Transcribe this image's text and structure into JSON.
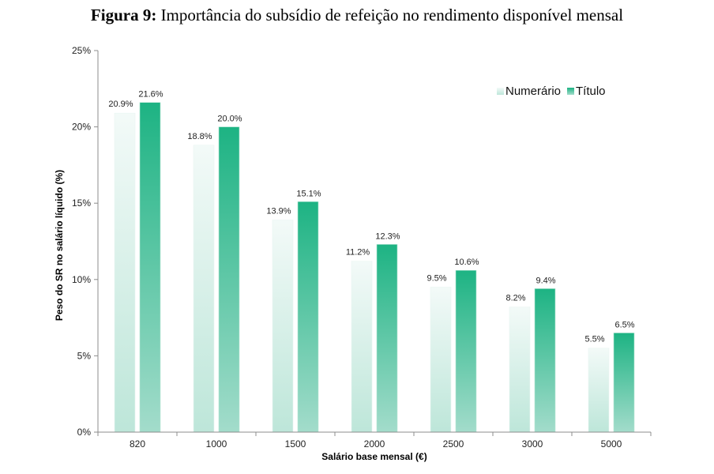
{
  "chart_data": {
    "type": "bar",
    "title_prefix": "Figura 9:",
    "title": "Importância do subsídio de refeição no rendimento disponível mensal",
    "xlabel": "Salário base mensal (€)",
    "ylabel": "Peso do SR no salário líquido (%)",
    "categories": [
      "820",
      "1000",
      "1500",
      "2000",
      "2500",
      "3000",
      "5000"
    ],
    "series": [
      {
        "name": "Numerário",
        "values": [
          20.9,
          18.8,
          13.9,
          11.2,
          9.5,
          8.2,
          5.5
        ],
        "labels": [
          "20.9%",
          "18.8%",
          "13.9%",
          "11.2%",
          "9.5%",
          "8.2%",
          "5.5%"
        ],
        "color_top": "#f3faf8",
        "color_bottom": "#bde6d9"
      },
      {
        "name": "Título",
        "values": [
          21.6,
          20.0,
          15.1,
          12.3,
          10.6,
          9.4,
          6.5
        ],
        "labels": [
          "21.6%",
          "20.0%",
          "15.1%",
          "12.3%",
          "10.6%",
          "9.4%",
          "6.5%"
        ],
        "color_top": "#1db383",
        "color_bottom": "#a3dccb"
      }
    ],
    "ylim": [
      0,
      25
    ],
    "yticks": [
      0,
      5,
      10,
      15,
      20,
      25
    ],
    "ytick_labels": [
      "0%",
      "5%",
      "10%",
      "15%",
      "20%",
      "25%"
    ],
    "grid": false,
    "legend_position": "top-right"
  }
}
